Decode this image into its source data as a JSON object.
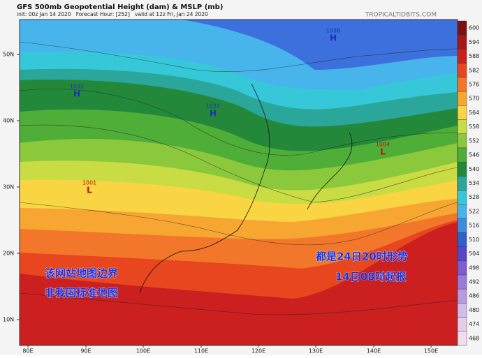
{
  "header": {
    "title": "GFS 500mb Geopotential Height (dam) & MSLP (mb)",
    "subtitle": "init: 00z Jan 14 2020   Forecast Hour: [252]   valid at 12z Fri, Jan 24 2020",
    "site": "TROPICALTIDBITS.COM"
  },
  "colorbar": {
    "labels": [
      "600",
      "594",
      "588",
      "582",
      "576",
      "570",
      "564",
      "558",
      "552",
      "546",
      "540",
      "534",
      "528",
      "522",
      "516",
      "510",
      "504",
      "498",
      "492",
      "486",
      "480",
      "474",
      "468"
    ],
    "colors": [
      "#7c1010",
      "#a51616",
      "#cc1f1f",
      "#e8461e",
      "#f2772a",
      "#f7a632",
      "#f9d443",
      "#c9dc43",
      "#8cc83c",
      "#4fae38",
      "#24883a",
      "#2aa79a",
      "#36c8d8",
      "#48b4ec",
      "#3c8ce0",
      "#2f5fcc",
      "#5548c8",
      "#7c5cd0",
      "#9a7ad8",
      "#b89ae0",
      "#d2bce8",
      "#e6cce8",
      "#f2dcee"
    ]
  },
  "axes": {
    "lat": [
      "50N",
      "40N",
      "30N",
      "20N",
      "10N"
    ],
    "lon": [
      "80E",
      "90E",
      "100E",
      "110E",
      "120E",
      "130E",
      "140E",
      "150E"
    ]
  },
  "centers": [
    {
      "kind": "H",
      "value": "1032"
    },
    {
      "kind": "H",
      "value": "1031"
    },
    {
      "kind": "H",
      "value": "1036"
    },
    {
      "kind": "L",
      "value": "1004"
    },
    {
      "kind": "L",
      "value": "1001"
    }
  ],
  "annotations": {
    "right": [
      "都是24日20时形势",
      "14日08时起报"
    ],
    "left": [
      "该网站地图边界",
      "非我国标准地图"
    ]
  }
}
